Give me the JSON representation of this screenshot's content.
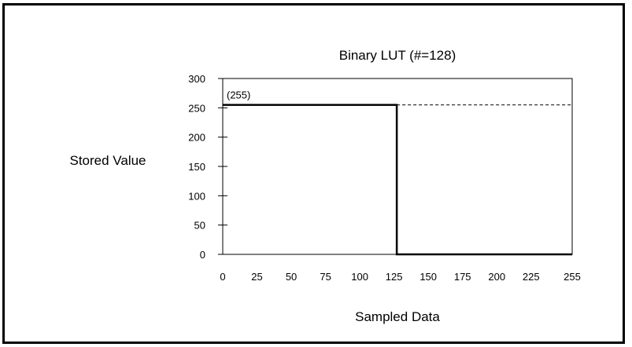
{
  "chart_data": {
    "type": "line",
    "title": "Binary LUT (#=128)",
    "xlabel": "Sampled Data",
    "ylabel": "Stored Value",
    "xlim": [
      0,
      255
    ],
    "ylim": [
      0,
      300
    ],
    "x_ticks": [
      0,
      25,
      50,
      75,
      100,
      125,
      150,
      175,
      200,
      225,
      255
    ],
    "y_ticks": [
      0,
      50,
      100,
      150,
      200,
      250,
      300
    ],
    "grid": false,
    "series": [
      {
        "style": "solid",
        "points": [
          [
            0,
            255
          ],
          [
            127,
            255
          ],
          [
            127,
            0
          ],
          [
            255,
            0
          ]
        ]
      },
      {
        "style": "dashed",
        "points": [
          [
            127,
            255
          ],
          [
            255,
            255
          ]
        ]
      }
    ],
    "annotations": [
      {
        "text": "(255)",
        "x": 0,
        "y": 255
      }
    ]
  }
}
